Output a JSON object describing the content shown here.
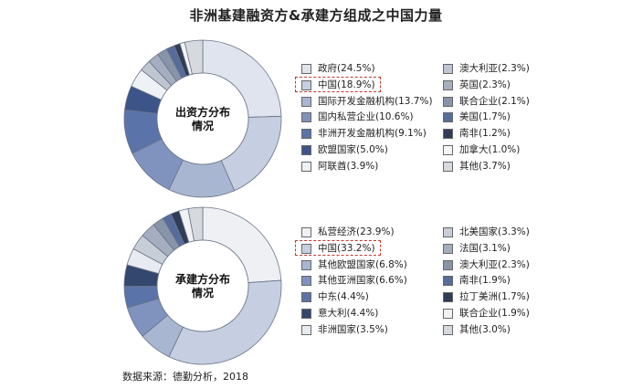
{
  "title": "非洲基建融资方&承建方组成之中国力量",
  "source": "数据来源：德勤分析，2018",
  "chart_data": [
    {
      "type": "pie",
      "center_label": [
        "出资方分布",
        "情况"
      ],
      "highlight": "中国",
      "slices": [
        {
          "name": "政府",
          "label": "政府(24.5%)",
          "value": 24.5,
          "color": "#dfe4ee"
        },
        {
          "name": "中国",
          "label": "中国(18.9%)",
          "value": 18.9,
          "color": "#c6cfe1"
        },
        {
          "name": "国际开发金融机构",
          "label": "国际开发金融机构(13.7%)",
          "value": 13.7,
          "color": "#a8b6d2"
        },
        {
          "name": "国内私营企业",
          "label": "国内私营企业(10.6%)",
          "value": 10.6,
          "color": "#7f93be"
        },
        {
          "name": "非洲开发金融机构",
          "label": "非洲开发金融机构(9.1%)",
          "value": 9.1,
          "color": "#5a74aa"
        },
        {
          "name": "欧盟国家",
          "label": "欧盟国家(5.0%)",
          "value": 5.0,
          "color": "#3c5488"
        },
        {
          "name": "阿联酋",
          "label": "阿联酋(3.9%)",
          "value": 3.9,
          "color": "#eef1f6"
        },
        {
          "name": "澳大利亚",
          "label": "澳大利亚(2.3%)",
          "value": 2.3,
          "color": "#c0c6d0"
        },
        {
          "name": "英国",
          "label": "英国(2.3%)",
          "value": 2.3,
          "color": "#a4aec0"
        },
        {
          "name": "联合企业",
          "label": "联合企业(2.1%)",
          "value": 2.1,
          "color": "#8894aa"
        },
        {
          "name": "美国",
          "label": "美国(1.7%)",
          "value": 1.7,
          "color": "#566c9a"
        },
        {
          "name": "南非",
          "label": "南非(1.2%)",
          "value": 1.2,
          "color": "#2f3d58"
        },
        {
          "name": "加拿大",
          "label": "加拿大(1.0%)",
          "value": 1.0,
          "color": "#f4f5f7"
        },
        {
          "name": "其他",
          "label": "其他(3.7%)",
          "value": 3.7,
          "color": "#d6d9de"
        }
      ]
    },
    {
      "type": "pie",
      "center_label": [
        "承建方分布",
        "情况"
      ],
      "highlight": "中国",
      "slices": [
        {
          "name": "私营经济",
          "label": "私营经济(23.9%)",
          "value": 23.9,
          "color": "#eef0f4"
        },
        {
          "name": "中国",
          "label": "中国(33.2%)",
          "value": 33.2,
          "color": "#c6cfe1"
        },
        {
          "name": "其他欧盟国家",
          "label": "其他欧盟国家(6.8%)",
          "value": 6.8,
          "color": "#a8b6d2"
        },
        {
          "name": "其他亚洲国家",
          "label": "其他亚洲国家(6.6%)",
          "value": 6.6,
          "color": "#7f93be"
        },
        {
          "name": "中东",
          "label": "中东(4.4%)",
          "value": 4.4,
          "color": "#5a74aa"
        },
        {
          "name": "意大利",
          "label": "意大利(4.4%)",
          "value": 4.4,
          "color": "#33476f"
        },
        {
          "name": "非洲国家",
          "label": "非洲国家(3.5%)",
          "value": 3.5,
          "color": "#e8ebf1"
        },
        {
          "name": "北美国家",
          "label": "北美国家(3.3%)",
          "value": 3.3,
          "color": "#c8ced8"
        },
        {
          "name": "法国",
          "label": "法国(3.1%)",
          "value": 3.1,
          "color": "#a4aec0"
        },
        {
          "name": "澳大利亚",
          "label": "澳大利亚(2.3%)",
          "value": 2.3,
          "color": "#8894aa"
        },
        {
          "name": "南非",
          "label": "南非(1.9%)",
          "value": 1.9,
          "color": "#566c9a"
        },
        {
          "name": "拉丁美洲",
          "label": "拉丁美洲(1.7%)",
          "value": 1.7,
          "color": "#2f3d58"
        },
        {
          "name": "联合企业",
          "label": "联合企业(1.9%)",
          "value": 1.9,
          "color": "#f1f2f5"
        },
        {
          "name": "其他",
          "label": "其他(3.0%)",
          "value": 3.0,
          "color": "#d6d9de"
        }
      ]
    }
  ]
}
